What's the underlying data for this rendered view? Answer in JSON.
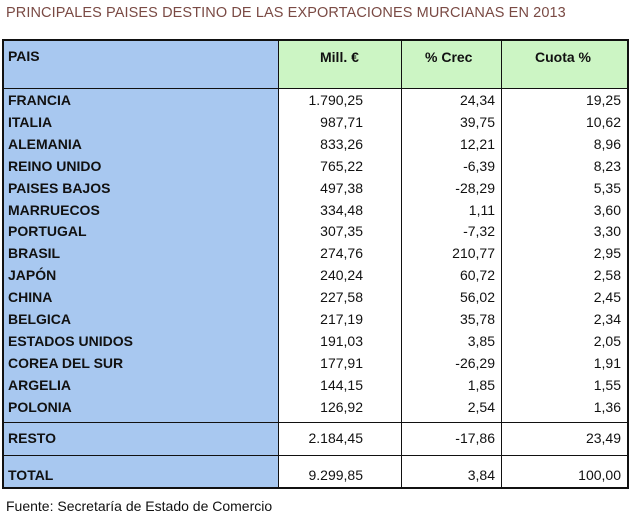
{
  "title": "PRINCIPALES PAISES DESTINO DE LAS EXPORTACIONES MURCIANAS EN 2013",
  "headers": {
    "pais": "PAIS",
    "mill": "Mill. €",
    "crec": "% Crec",
    "cuota": "Cuota %"
  },
  "rows": [
    {
      "pais": "FRANCIA",
      "mill": "1.790,25",
      "crec": "24,34",
      "cuota": "19,25"
    },
    {
      "pais": "ITALIA",
      "mill": "987,71",
      "crec": "39,75",
      "cuota": "10,62"
    },
    {
      "pais": "ALEMANIA",
      "mill": "833,26",
      "crec": "12,21",
      "cuota": "8,96"
    },
    {
      "pais": "REINO UNIDO",
      "mill": "765,22",
      "crec": "-6,39",
      "cuota": "8,23"
    },
    {
      "pais": "PAISES BAJOS",
      "mill": "497,38",
      "crec": "-28,29",
      "cuota": "5,35"
    },
    {
      "pais": "MARRUECOS",
      "mill": "334,48",
      "crec": "1,11",
      "cuota": "3,60"
    },
    {
      "pais": "PORTUGAL",
      "mill": "307,35",
      "crec": "-7,32",
      "cuota": "3,30"
    },
    {
      "pais": "BRASIL",
      "mill": "274,76",
      "crec": "210,77",
      "cuota": "2,95"
    },
    {
      "pais": "JAPÓN",
      "mill": "240,24",
      "crec": "60,72",
      "cuota": "2,58"
    },
    {
      "pais": "CHINA",
      "mill": "227,58",
      "crec": "56,02",
      "cuota": "2,45"
    },
    {
      "pais": "BELGICA",
      "mill": "217,19",
      "crec": "35,78",
      "cuota": "2,34"
    },
    {
      "pais": "ESTADOS UNIDOS",
      "mill": "191,03",
      "crec": "3,85",
      "cuota": "2,05"
    },
    {
      "pais": "COREA DEL SUR",
      "mill": "177,91",
      "crec": "-26,29",
      "cuota": "1,91"
    },
    {
      "pais": "ARGELIA",
      "mill": "144,15",
      "crec": "1,85",
      "cuota": "1,55"
    },
    {
      "pais": "POLONIA",
      "mill": "126,92",
      "crec": "2,54",
      "cuota": "1,36"
    }
  ],
  "resto": {
    "pais": "RESTO",
    "mill": "2.184,45",
    "crec": "-17,86",
    "cuota": "23,49"
  },
  "total": {
    "pais": "TOTAL",
    "mill": "9.299,85",
    "crec": "3,84",
    "cuota": "100,00"
  },
  "source": "Fuente: Secretaría de Estado de Comercio",
  "colors": {
    "pais_column": "#a8c8f0",
    "header_green": "#ccf5c4",
    "title": "#7a4a44"
  }
}
